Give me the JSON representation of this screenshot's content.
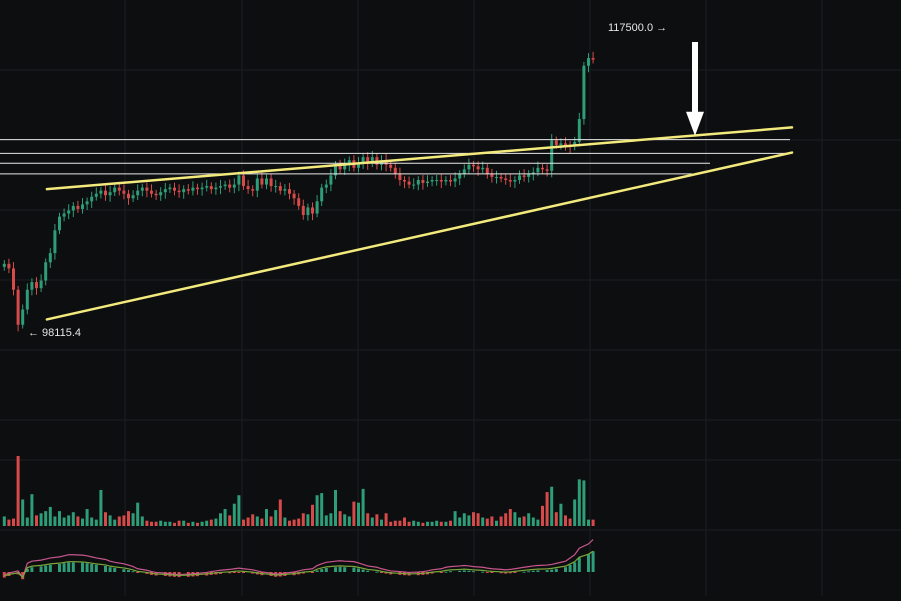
{
  "colors": {
    "background": "#0d0e10",
    "grid": "#1b1d22",
    "up": "#2e9e78",
    "down": "#d64a4a",
    "trendline": "#f2ea7c",
    "level_line": "#e8e8e8",
    "annotation_text": "#e6e6e6",
    "arrow": "#ffffff",
    "macd_line": "#c8568e",
    "signal_line": "#79a63a"
  },
  "chart_data": {
    "type": "candlestick",
    "title": "",
    "xlabel": "",
    "ylabel": "",
    "ylim": [
      97500,
      118500
    ],
    "grid": true,
    "annotations": {
      "high_label": "117500.0 →",
      "low_label": "← 98115.4",
      "high_value": 117500.0,
      "low_value": 98115.4,
      "down_arrow_at_price": 110900
    },
    "horizontal_levels": [
      110650,
      109750,
      109100,
      108400
    ],
    "trendlines": [
      {
        "name": "upper",
        "from": [
          1,
          107400
        ],
        "to": [
          207,
          111450
        ]
      },
      {
        "name": "lower",
        "from": [
          1,
          98850
        ],
        "to": [
          207,
          109800
        ]
      }
    ],
    "candle_closes": [
      102500,
      102200,
      100800,
      98500,
      99500,
      100800,
      101300,
      100900,
      101400,
      102600,
      103200,
      104700,
      105600,
      105800,
      106000,
      106300,
      106100,
      106400,
      106600,
      106900,
      107100,
      107300,
      107000,
      107200,
      107500,
      107300,
      107100,
      106800,
      107000,
      107300,
      107500,
      107300,
      107100,
      107000,
      107200,
      107400,
      107500,
      107300,
      107200,
      107400,
      107300,
      107500,
      107400,
      107500,
      107600,
      107400,
      107500,
      107600,
      107700,
      107500,
      107700,
      108300,
      107600,
      107400,
      107300,
      108100,
      107700,
      108100,
      107600,
      107600,
      107300,
      107400,
      107100,
      106800,
      106300,
      105700,
      106200,
      105800,
      106600,
      107500,
      107700,
      108300,
      109000,
      108700,
      109000,
      109300,
      108800,
      109100,
      109500,
      109100,
      109500,
      109000,
      109300,
      109000,
      108800,
      108400,
      108000,
      107900,
      107700,
      107700,
      108000,
      107800,
      107900,
      108000,
      108000,
      107900,
      108000,
      107900,
      108100,
      108400,
      108700,
      109000,
      108900,
      108700,
      108800,
      108400,
      108200,
      108200,
      108100,
      108000,
      107900,
      108000,
      108300,
      108200,
      108400,
      108500,
      108800,
      108700,
      108600,
      110600,
      110300,
      110400,
      110300,
      110200,
      110500,
      112000,
      115500,
      116000,
      115900,
      null,
      null,
      null,
      null,
      null,
      null,
      null,
      null,
      null,
      null,
      null,
      null,
      null,
      null,
      null,
      null,
      null,
      null,
      null,
      null,
      null,
      null,
      null,
      null,
      null,
      null,
      null,
      null,
      null,
      null,
      null,
      null,
      null,
      null,
      null,
      null,
      null,
      null,
      null,
      null,
      null,
      null,
      null,
      null,
      null,
      null,
      null,
      null,
      null,
      null,
      null,
      null,
      null,
      null,
      null,
      null,
      null,
      null,
      null,
      null,
      null,
      null,
      null,
      null,
      null,
      null,
      null,
      null,
      null,
      null,
      null,
      null,
      null,
      null,
      null,
      null,
      null,
      null,
      null,
      null
    ],
    "volume": [
      9,
      6,
      7,
      66,
      25,
      8,
      30,
      10,
      12,
      14,
      18,
      9,
      14,
      8,
      10,
      13,
      9,
      7,
      16,
      8,
      6,
      34,
      13,
      10,
      6,
      9,
      10,
      14,
      12,
      22,
      9,
      5,
      4,
      4,
      5,
      4,
      4,
      3,
      5,
      5,
      3,
      4,
      3,
      4,
      5,
      6,
      7,
      12,
      16,
      10,
      21,
      29,
      6,
      8,
      11,
      9,
      7,
      16,
      9,
      15,
      25,
      8,
      5,
      6,
      7,
      12,
      11,
      20,
      29,
      31,
      10,
      12,
      34,
      14,
      11,
      9,
      23,
      22,
      35,
      12,
      8,
      11,
      6,
      12,
      4,
      5,
      5,
      8,
      4,
      5,
      4,
      3,
      4,
      4,
      5,
      4,
      4,
      5,
      14,
      8,
      12,
      10,
      13,
      12,
      8,
      7,
      9,
      5,
      9,
      12,
      16,
      13,
      8,
      9,
      12,
      8,
      6,
      19,
      32,
      37,
      13,
      21,
      10,
      7,
      25,
      44,
      43,
      6,
      6
    ],
    "macd_histogram": [
      -0.35,
      -0.25,
      -0.15,
      -0.45,
      0.2,
      0.3,
      0.35,
      0.4,
      0.45,
      0.5,
      0.55,
      0.6,
      0.6,
      0.58,
      0.55,
      0.5,
      0.45,
      0.38,
      0.3,
      0.25,
      0.18,
      0.12,
      0.05,
      -0.05,
      -0.12,
      -0.18,
      -0.22,
      -0.25,
      -0.28,
      -0.3,
      -0.32,
      -0.3,
      -0.28,
      -0.26,
      -0.22,
      -0.18,
      -0.15,
      -0.12,
      -0.08,
      -0.05,
      -0.02,
      -0.05,
      -0.1,
      -0.15,
      -0.2,
      -0.25,
      -0.3,
      -0.28,
      -0.25,
      -0.2,
      -0.15,
      -0.1,
      -0.05,
      0.1,
      0.18,
      0.25,
      0.3,
      0.32,
      0.3,
      0.28,
      0.22,
      0.15,
      0.08,
      0.02,
      -0.05,
      -0.1,
      -0.15,
      -0.18,
      -0.2,
      -0.22,
      -0.2,
      -0.18,
      -0.15,
      -0.1,
      -0.05,
      0.02,
      0.05,
      0.08,
      0.1,
      0.08,
      0.05,
      0.02,
      -0.02,
      -0.05,
      -0.08,
      -0.1,
      -0.08,
      -0.05,
      0.02,
      0.05,
      0.08,
      0.1,
      0.12,
      0.15,
      0.2,
      0.3,
      0.45,
      0.6,
      0.9,
      1.1,
      1.3
    ]
  }
}
